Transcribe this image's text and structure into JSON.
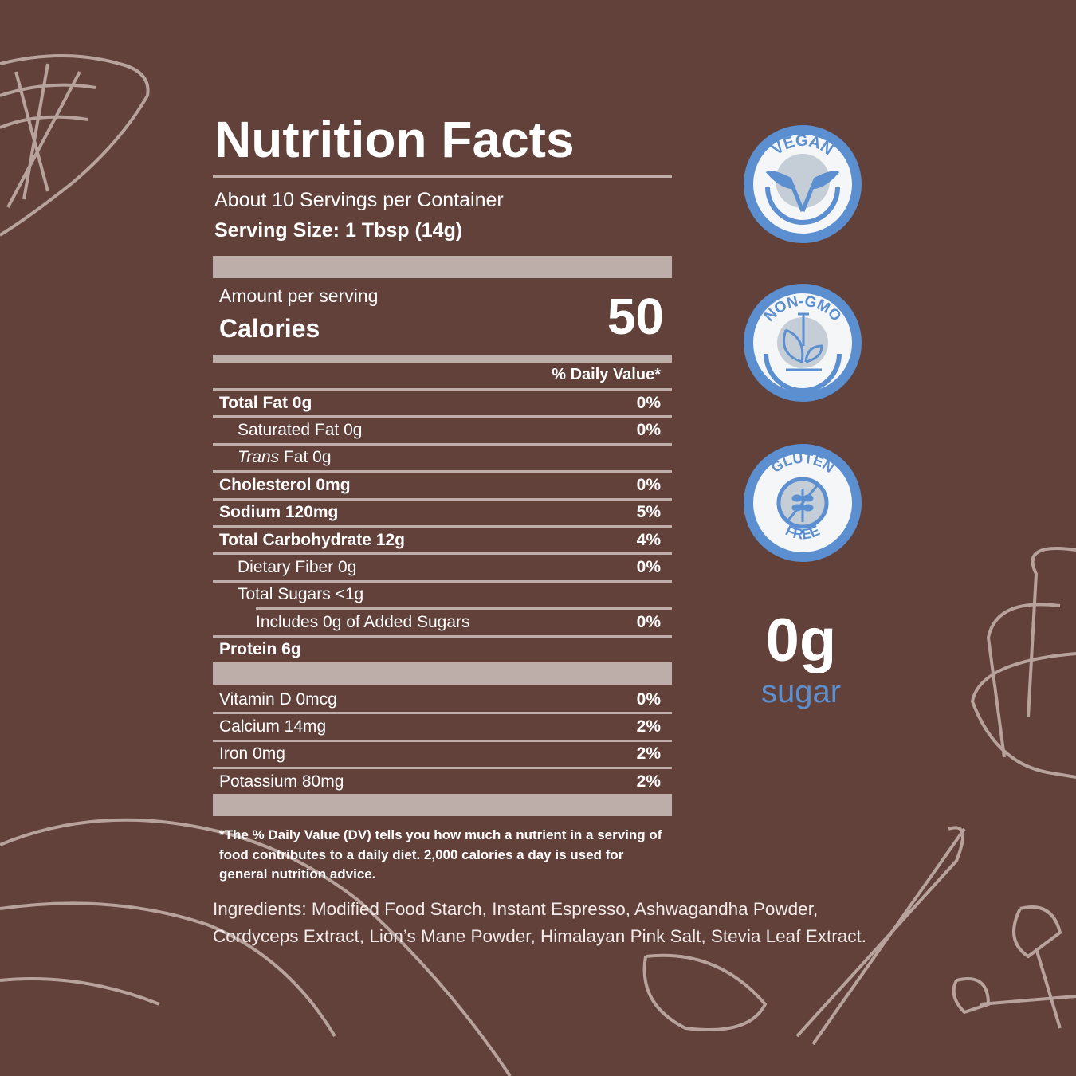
{
  "panel": {
    "title": "Nutrition Facts",
    "servings": "About 10 Servings per Container",
    "serving_size": "Serving Size: 1 Tbsp (14g)",
    "amount_per_serving": "Amount per serving",
    "calories_label": "Calories",
    "calories_value": "50",
    "daily_value_header": "% Daily Value*",
    "rows": [
      {
        "label": "Total Fat 0g",
        "dv": "0%"
      },
      {
        "label": "Saturated Fat 0g",
        "dv": "0%"
      },
      {
        "label_italic": "Trans",
        "label": " Fat 0g",
        "dv": ""
      },
      {
        "label": "Cholesterol 0mg",
        "dv": "0%"
      },
      {
        "label": "Sodium 120mg",
        "dv": "5%"
      },
      {
        "label": "Total Carbohydrate 12g",
        "dv": "4%"
      },
      {
        "label": "Dietary Fiber 0g",
        "dv": "0%"
      },
      {
        "label": "Total Sugars <1g",
        "dv": ""
      },
      {
        "label": "Includes 0g of Added Sugars",
        "dv": "0%"
      },
      {
        "label": "Protein 6g",
        "dv": ""
      }
    ],
    "vitamins": [
      {
        "label": "Vitamin D 0mcg",
        "dv": "0%"
      },
      {
        "label": "Calcium 14mg",
        "dv": "2%"
      },
      {
        "label": "Iron 0mg",
        "dv": "2%"
      },
      {
        "label": "Potassium 80mg",
        "dv": "2%"
      }
    ],
    "footnote": "*The % Daily Value (DV) tells you how much a nutrient in a serving of food contributes to a daily diet. 2,000 calories a day is used for general nutrition advice."
  },
  "ingredients": "Ingredients: Modified Food Starch, Instant Espresso, Ashwagandha Powder, Cordyceps Extract, Lion’s Mane Powder, Himalayan Pink Salt, Stevia Leaf Extract.",
  "badges": [
    {
      "text": "VEGAN",
      "icon": "leaf-v-icon"
    },
    {
      "text": "NON-GMO",
      "icon": "leaf-test-tube-icon"
    },
    {
      "text": "GLUTEN FREE",
      "icon": "wheat-crossed-icon"
    }
  ],
  "sugar_callout": {
    "amount": "0g",
    "label": "sugar"
  },
  "colors": {
    "background": "#61413a",
    "bars": "#bdaeaa",
    "badge_blue": "#5b8fd0",
    "badge_white": "#f4f6f8",
    "badge_grey": "#c5cdd6"
  }
}
